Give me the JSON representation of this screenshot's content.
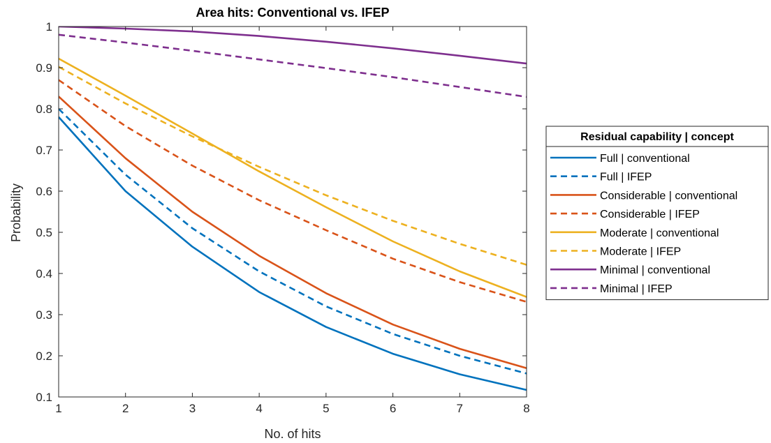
{
  "chart_data": {
    "type": "line",
    "title": "Area hits: Conventional vs. IFEP",
    "xlabel": "No. of hits",
    "ylabel": "Probability",
    "xlim": [
      1,
      8
    ],
    "ylim": [
      0.1,
      1
    ],
    "xticks": [
      "1",
      "2",
      "3",
      "4",
      "5",
      "6",
      "7",
      "8"
    ],
    "yticks": [
      "0.1",
      "0.2",
      "0.3",
      "0.4",
      "0.5",
      "0.6",
      "0.7",
      "0.8",
      "0.9",
      "1"
    ],
    "grid": false,
    "legend": {
      "title": "Residual capability | concept",
      "placement": "outside-right"
    },
    "x": [
      1,
      2,
      3,
      4,
      5,
      6,
      7,
      8
    ],
    "series": [
      {
        "name": "Full | conventional",
        "color": "#0072BD",
        "style": "solid",
        "values": [
          0.78,
          0.6,
          0.465,
          0.355,
          0.27,
          0.205,
          0.155,
          0.117
        ]
      },
      {
        "name": "Full | IFEP",
        "color": "#0072BD",
        "style": "dashed",
        "values": [
          0.8,
          0.64,
          0.51,
          0.405,
          0.32,
          0.253,
          0.2,
          0.157
        ]
      },
      {
        "name": "Considerable | conventional",
        "color": "#D95319",
        "style": "solid",
        "values": [
          0.83,
          0.68,
          0.55,
          0.443,
          0.352,
          0.276,
          0.217,
          0.17
        ]
      },
      {
        "name": "Considerable | IFEP",
        "color": "#D95319",
        "style": "dashed",
        "values": [
          0.87,
          0.758,
          0.662,
          0.578,
          0.505,
          0.436,
          0.379,
          0.331
        ]
      },
      {
        "name": "Moderate | conventional",
        "color": "#EDB120",
        "style": "solid",
        "values": [
          0.922,
          0.832,
          0.74,
          0.648,
          0.561,
          0.478,
          0.405,
          0.343
        ]
      },
      {
        "name": "Moderate | IFEP",
        "color": "#EDB120",
        "style": "dashed",
        "values": [
          0.902,
          0.813,
          0.733,
          0.659,
          0.59,
          0.528,
          0.472,
          0.421
        ]
      },
      {
        "name": "Minimal | conventional",
        "color": "#7E2F8E",
        "style": "solid",
        "values": [
          1.0,
          0.995,
          0.988,
          0.977,
          0.963,
          0.947,
          0.929,
          0.91
        ]
      },
      {
        "name": "Minimal | IFEP",
        "color": "#7E2F8E",
        "style": "dashed",
        "values": [
          0.98,
          0.961,
          0.941,
          0.92,
          0.899,
          0.877,
          0.853,
          0.829
        ]
      }
    ]
  }
}
